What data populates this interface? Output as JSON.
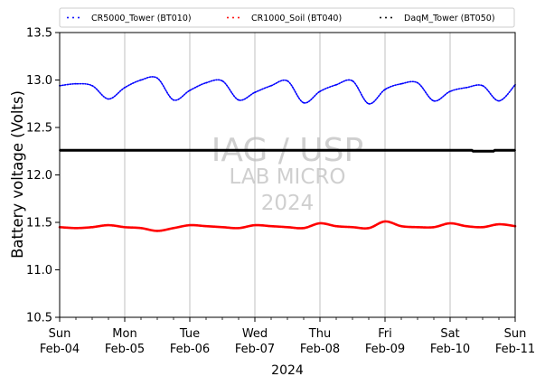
{
  "chart_data": {
    "type": "line",
    "ylabel": "Battery voltage (Volts)",
    "xlabel": "2024",
    "ylim": [
      10.5,
      13.5
    ],
    "xlim": [
      "2024-02-04",
      "2024-02-11"
    ],
    "y_ticks": [
      "10.5",
      "11.0",
      "11.5",
      "12.0",
      "12.5",
      "13.0",
      "13.5"
    ],
    "x_ticks": [
      {
        "date": "2024-02-04",
        "day": "Sun",
        "label": "Feb-04"
      },
      {
        "date": "2024-02-05",
        "day": "Mon",
        "label": "Feb-05"
      },
      {
        "date": "2024-02-06",
        "day": "Tue",
        "label": "Feb-06"
      },
      {
        "date": "2024-02-07",
        "day": "Wed",
        "label": "Feb-07"
      },
      {
        "date": "2024-02-08",
        "day": "Thu",
        "label": "Feb-08"
      },
      {
        "date": "2024-02-09",
        "day": "Fri",
        "label": "Feb-09"
      },
      {
        "date": "2024-02-10",
        "day": "Sat",
        "label": "Feb-10"
      },
      {
        "date": "2024-02-11",
        "day": "Sun",
        "label": "Feb-11"
      }
    ],
    "grid": "vertical",
    "legend_position": "top",
    "watermark": {
      "line1": "IAG / USP",
      "line2": "LAB MICRO",
      "line3": "2024"
    },
    "series": [
      {
        "name": "CR5000_Tower (BT010)",
        "color": "#0000ff",
        "x": [
          "2024-02-04 00:00",
          "2024-02-04 06:00",
          "2024-02-04 12:00",
          "2024-02-04 18:00",
          "2024-02-05 00:00",
          "2024-02-05 06:00",
          "2024-02-05 12:00",
          "2024-02-05 18:00",
          "2024-02-06 00:00",
          "2024-02-06 06:00",
          "2024-02-06 12:00",
          "2024-02-06 18:00",
          "2024-02-07 00:00",
          "2024-02-07 06:00",
          "2024-02-07 12:00",
          "2024-02-07 18:00",
          "2024-02-08 00:00",
          "2024-02-08 06:00",
          "2024-02-08 12:00",
          "2024-02-08 18:00",
          "2024-02-09 00:00",
          "2024-02-09 06:00",
          "2024-02-09 12:00",
          "2024-02-09 18:00",
          "2024-02-10 00:00",
          "2024-02-10 06:00",
          "2024-02-10 12:00",
          "2024-02-10 18:00",
          "2024-02-11 00:00"
        ],
        "values": [
          12.94,
          12.96,
          12.94,
          12.8,
          12.92,
          13.0,
          13.02,
          12.79,
          12.89,
          12.97,
          12.99,
          12.79,
          12.87,
          12.94,
          12.99,
          12.76,
          12.88,
          12.95,
          12.99,
          12.75,
          12.9,
          12.96,
          12.97,
          12.78,
          12.88,
          12.92,
          12.94,
          12.78,
          12.95
        ]
      },
      {
        "name": "CR1000_Soil (BT040)",
        "color": "#ff0000",
        "x": [
          "2024-02-04 00:00",
          "2024-02-04 06:00",
          "2024-02-04 12:00",
          "2024-02-04 18:00",
          "2024-02-05 00:00",
          "2024-02-05 06:00",
          "2024-02-05 12:00",
          "2024-02-05 18:00",
          "2024-02-06 00:00",
          "2024-02-06 06:00",
          "2024-02-06 12:00",
          "2024-02-06 18:00",
          "2024-02-07 00:00",
          "2024-02-07 06:00",
          "2024-02-07 12:00",
          "2024-02-07 18:00",
          "2024-02-08 00:00",
          "2024-02-08 06:00",
          "2024-02-08 12:00",
          "2024-02-08 18:00",
          "2024-02-09 00:00",
          "2024-02-09 06:00",
          "2024-02-09 12:00",
          "2024-02-09 18:00",
          "2024-02-10 00:00",
          "2024-02-10 06:00",
          "2024-02-10 12:00",
          "2024-02-10 18:00",
          "2024-02-11 00:00"
        ],
        "values": [
          11.45,
          11.44,
          11.45,
          11.47,
          11.45,
          11.44,
          11.41,
          11.44,
          11.47,
          11.46,
          11.45,
          11.44,
          11.47,
          11.46,
          11.45,
          11.44,
          11.49,
          11.46,
          11.45,
          11.44,
          11.51,
          11.46,
          11.45,
          11.45,
          11.49,
          11.46,
          11.45,
          11.48,
          11.46
        ]
      },
      {
        "name": "DaqM_Tower (BT050)",
        "color": "#000000",
        "x": [
          "2024-02-04 00:00",
          "2024-02-05 00:00",
          "2024-02-06 00:00",
          "2024-02-07 00:00",
          "2024-02-08 00:00",
          "2024-02-09 00:00",
          "2024-02-10 00:00",
          "2024-02-10 08:00",
          "2024-02-10 08:30",
          "2024-02-10 16:00",
          "2024-02-10 16:30",
          "2024-02-11 00:00"
        ],
        "values": [
          12.26,
          12.26,
          12.26,
          12.26,
          12.26,
          12.26,
          12.26,
          12.26,
          12.25,
          12.25,
          12.26,
          12.26
        ]
      }
    ]
  }
}
